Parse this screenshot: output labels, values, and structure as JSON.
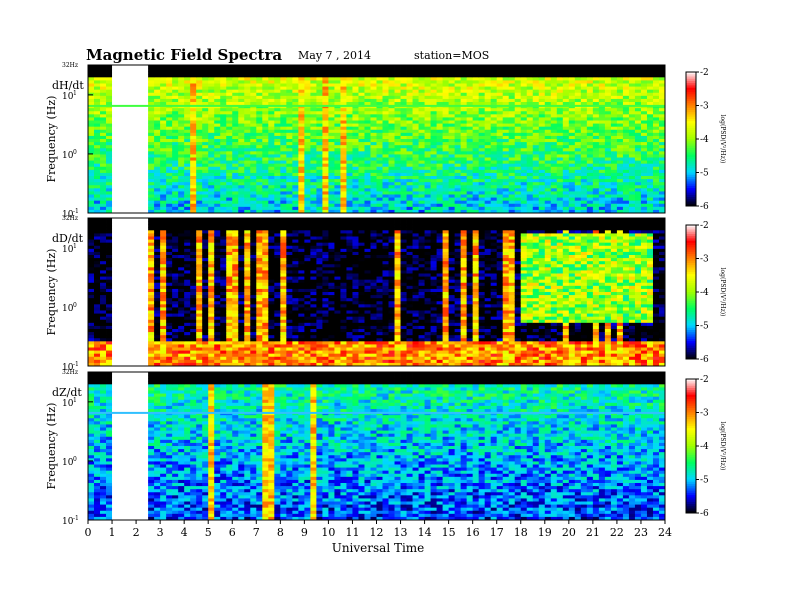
{
  "header": {
    "title": "Magnetic  Field  Spectra",
    "date": "May 7  , 2014",
    "station": "station=MOS"
  },
  "chart_data": {
    "type": "heatmap",
    "xlabel": "Universal Time",
    "x_ticks": [
      "0",
      "1",
      "2",
      "3",
      "4",
      "5",
      "6",
      "7",
      "8",
      "9",
      "10",
      "11",
      "12",
      "13",
      "14",
      "15",
      "16",
      "17",
      "18",
      "19",
      "20",
      "21",
      "22",
      "23",
      "24"
    ],
    "xlim": [
      0,
      24
    ],
    "ylabel": "Frequency  (Hz)",
    "y_scale": "log",
    "ylim": [
      0.1,
      32
    ],
    "y_top_label": "32Hz",
    "y_ticks": [
      {
        "base": "10",
        "exp": "1"
      },
      {
        "base": "10",
        "exp": "0"
      },
      {
        "base": "10",
        "exp": "-1"
      }
    ],
    "colorbar": {
      "label": "log(PSD(V²/Hz))",
      "ticks": [
        "-2",
        "-3",
        "-4",
        "-5",
        "-6"
      ],
      "range": [
        -6,
        -2
      ],
      "colors": [
        "#000000",
        "#0000ff",
        "#00d8ff",
        "#00ff60",
        "#a0ff00",
        "#ffff00",
        "#ff8000",
        "#ff0000",
        "#ffffff"
      ]
    },
    "panels": [
      {
        "name": "dH/dt",
        "background_level": -4.3,
        "noise_floor_level": -5.2,
        "data_gap_hours": [
          0.9,
          2.4
        ],
        "persistent_line_hz": 6.5
      },
      {
        "name": "dD/dt",
        "background_level": -6.0,
        "noise_floor_level": -3.0,
        "data_gap_hours": [
          0.9,
          2.4
        ],
        "active_interval_hours": [
          18,
          23.5
        ]
      },
      {
        "name": "dZ/dt",
        "background_level": -5.0,
        "noise_floor_level": -5.8,
        "data_gap_hours": [
          0.9,
          2.4
        ],
        "persistent_line_hz": 6.5
      }
    ]
  }
}
